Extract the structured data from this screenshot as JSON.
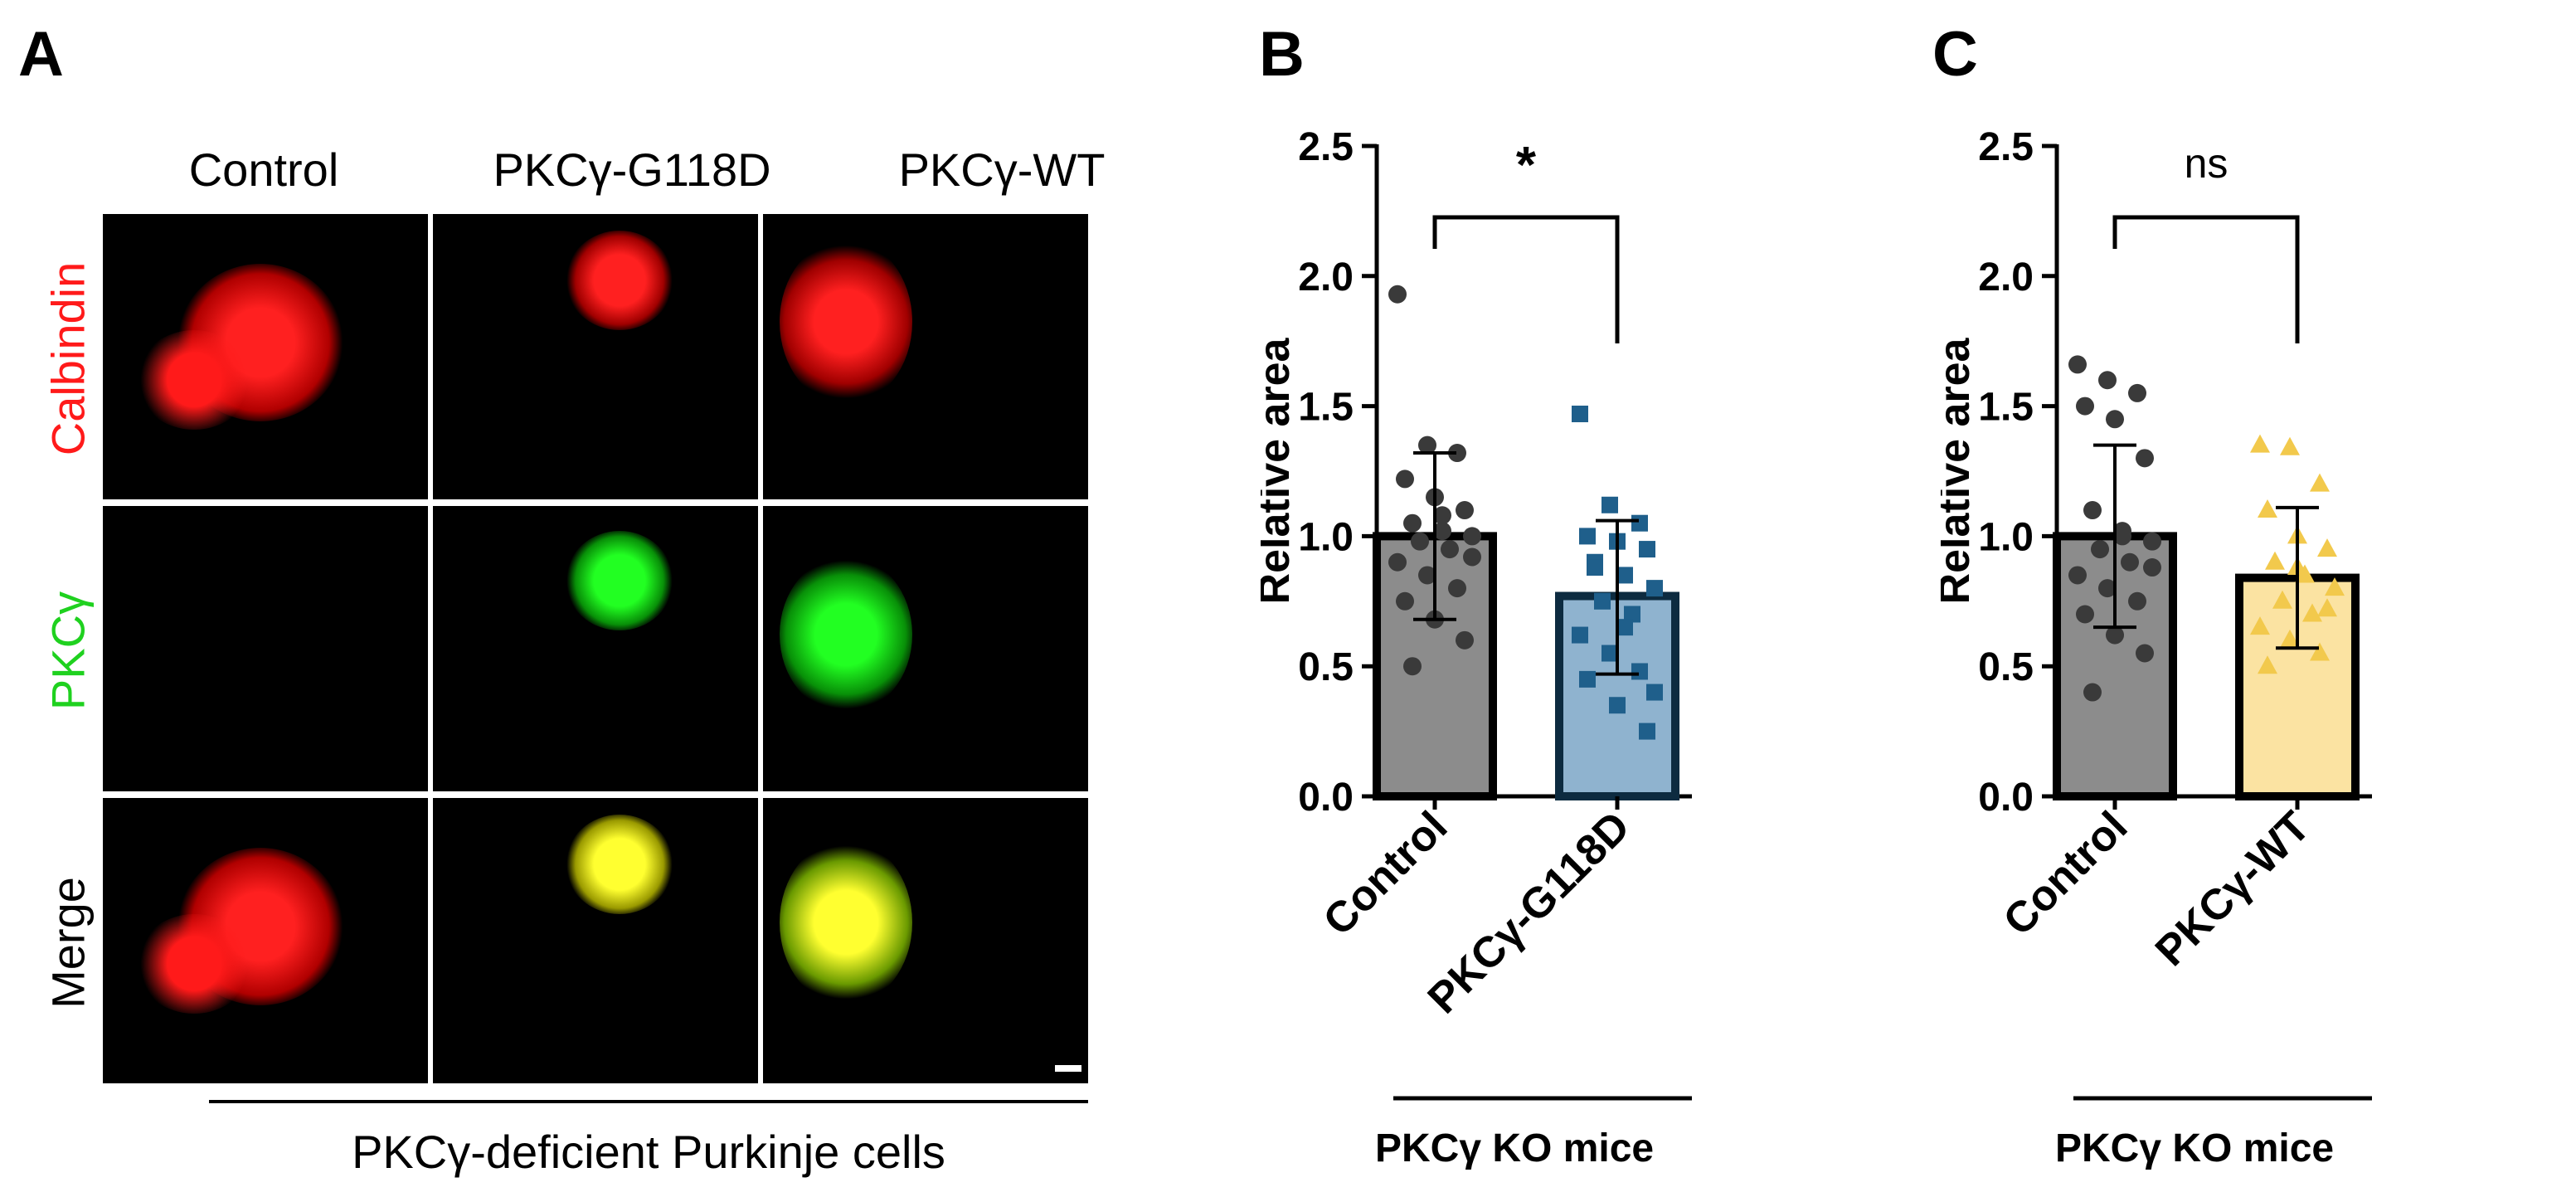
{
  "panels": {
    "a": "A",
    "b": "B",
    "c": "C"
  },
  "panel_a": {
    "columns": [
      "Control",
      "PKCγ-G118D",
      "PKCγ-WT"
    ],
    "rows": [
      {
        "label": "Calbindin",
        "color": "#ff1a1a"
      },
      {
        "label": "PKCγ",
        "color": "#1fd11f"
      },
      {
        "label": "Merge",
        "color": "#000000"
      }
    ],
    "caption": "PKCγ-deficient Purkinje cells"
  },
  "chart_data": [
    {
      "type": "bar",
      "ylabel": "Relative area",
      "ylim": [
        0,
        2.5
      ],
      "yticks": [
        "0.0",
        "0.5",
        "1.0",
        "1.5",
        "2.0",
        "2.5"
      ],
      "categories": [
        "Control",
        "PKCγ-G118D"
      ],
      "group_label": "PKCγ KO mice",
      "significance": "*",
      "bars": [
        {
          "name": "Control",
          "mean": 1.0,
          "sd_low": 0.68,
          "sd_high": 1.32,
          "fill": "#8c8c8c",
          "edge": "#000000",
          "point_color": "#3a3a3a",
          "marker": "circle",
          "points": [
            1.93,
            1.35,
            1.32,
            1.22,
            1.15,
            1.1,
            1.05,
            1.02,
            1.0,
            0.98,
            0.95,
            0.9,
            0.85,
            0.8,
            0.75,
            0.68,
            0.6,
            0.5,
            1.08,
            0.92
          ]
        },
        {
          "name": "PKCγ-G118D",
          "mean": 0.77,
          "sd_low": 0.47,
          "sd_high": 1.06,
          "fill": "#8fb3cf",
          "edge": "#0d2b40",
          "point_color": "#1f5f8b",
          "marker": "square",
          "points": [
            1.47,
            1.12,
            1.05,
            1.0,
            0.98,
            0.95,
            0.9,
            0.85,
            0.8,
            0.75,
            0.7,
            0.62,
            0.55,
            0.48,
            0.45,
            0.35,
            0.25,
            0.88,
            0.65,
            0.4
          ]
        }
      ]
    },
    {
      "type": "bar",
      "ylabel": "Relative area",
      "ylim": [
        0,
        2.5
      ],
      "yticks": [
        "0.0",
        "0.5",
        "1.0",
        "1.5",
        "2.0",
        "2.5"
      ],
      "categories": [
        "Control",
        "PKCγ-WT"
      ],
      "group_label": "PKCγ KO mice",
      "significance": "ns",
      "bars": [
        {
          "name": "Control",
          "mean": 1.0,
          "sd_low": 0.65,
          "sd_high": 1.35,
          "fill": "#8c8c8c",
          "edge": "#000000",
          "point_color": "#3a3a3a",
          "marker": "circle",
          "points": [
            1.66,
            1.6,
            1.55,
            1.5,
            1.45,
            1.3,
            1.1,
            1.02,
            0.98,
            0.95,
            0.9,
            0.85,
            0.8,
            0.75,
            0.7,
            0.62,
            0.55,
            0.4,
            1.0,
            0.88
          ]
        },
        {
          "name": "PKCγ-WT",
          "mean": 0.84,
          "sd_low": 0.57,
          "sd_high": 1.11,
          "fill": "#fbe3a2",
          "edge": "#000000",
          "point_color": "#f2c94c",
          "marker": "triangle",
          "points": [
            1.35,
            1.34,
            1.2,
            1.1,
            1.0,
            0.95,
            0.9,
            0.85,
            0.8,
            0.75,
            0.7,
            0.65,
            0.6,
            0.55,
            0.5,
            0.88,
            0.72
          ]
        }
      ]
    }
  ]
}
